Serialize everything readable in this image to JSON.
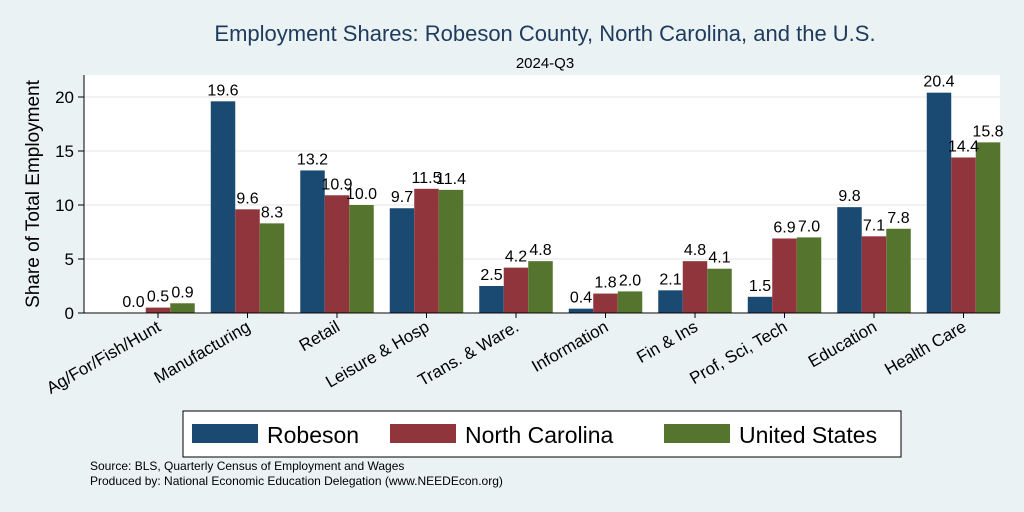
{
  "chart_data": {
    "type": "bar",
    "title": "Employment Shares: Robeson County, North Carolina, and the U.S.",
    "subtitle": "2024-Q3",
    "xlabel": "",
    "ylabel": "Share of Total Employment",
    "ylim": [
      0,
      22
    ],
    "yticks": [
      "0",
      "5",
      "10",
      "15",
      "20"
    ],
    "grid": true,
    "legend_position": "bottom",
    "categories": [
      "Ag/For/Fish/Hunt",
      "Manufacturing",
      "Retail",
      "Leisure & Hosp",
      "Trans. & Ware.",
      "Information",
      "Fin & Ins",
      "Prof, Sci, Tech",
      "Education",
      "Health Care"
    ],
    "series": [
      {
        "name": "Robeson",
        "color": "#1a4a72",
        "values": [
          0.0,
          19.6,
          13.2,
          9.7,
          2.5,
          0.4,
          2.1,
          1.5,
          9.8,
          20.4
        ],
        "labels": [
          "0.0",
          "19.6",
          "13.2",
          "9.7",
          "2.5",
          "0.4",
          "2.1",
          "1.5",
          "9.8",
          "20.4"
        ]
      },
      {
        "name": "North Carolina",
        "color": "#90353b",
        "values": [
          0.5,
          9.6,
          10.9,
          11.5,
          4.2,
          1.8,
          4.8,
          6.9,
          7.1,
          14.4
        ],
        "labels": [
          "0.5",
          "9.6",
          "10.9",
          "11.5",
          "4.2",
          "1.8",
          "4.8",
          "6.9",
          "7.1",
          "14.4"
        ]
      },
      {
        "name": "United States",
        "color": "#55752f",
        "values": [
          0.9,
          8.3,
          10.0,
          11.4,
          4.8,
          2.0,
          4.1,
          7.0,
          7.8,
          15.8
        ],
        "labels": [
          "0.9",
          "8.3",
          "10.0",
          "11.4",
          "4.8",
          "2.0",
          "4.1",
          "7.0",
          "7.8",
          "15.8"
        ]
      }
    ]
  },
  "footer": {
    "source": "Source: BLS, Quarterly Census of Employment and Wages",
    "produced": "Produced by: National Economic Education Delegation (www.NEEDEcon.org)"
  }
}
